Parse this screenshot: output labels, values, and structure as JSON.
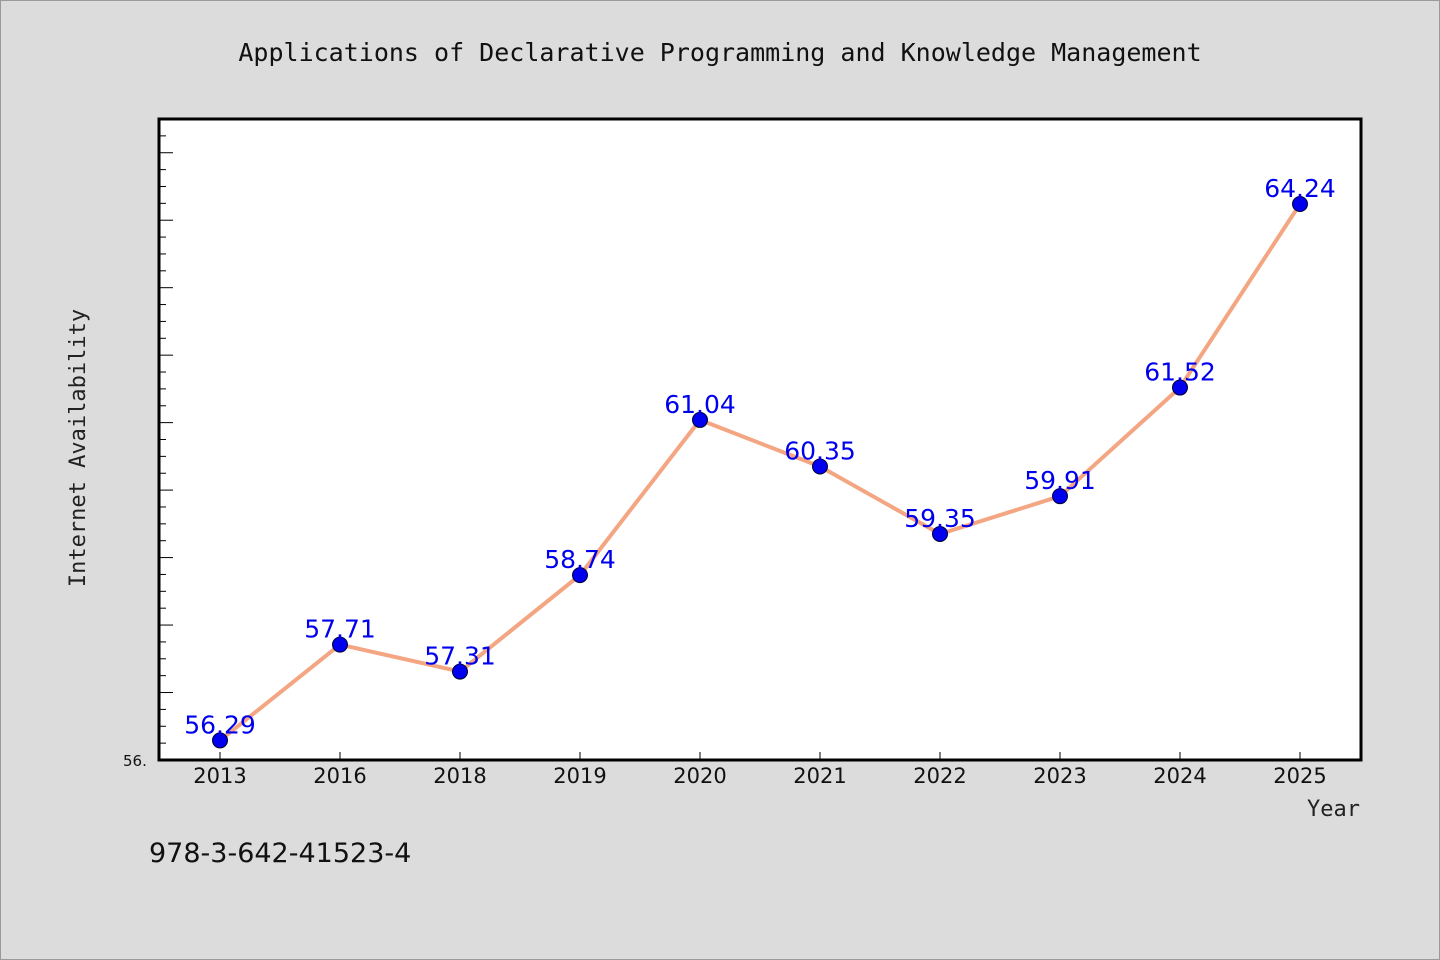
{
  "chart_data": {
    "type": "line",
    "title": "Applications of Declarative Programming and Knowledge Management",
    "xlabel": "Year",
    "ylabel": "Internet Availability",
    "categories": [
      "2013",
      "2016",
      "2018",
      "2019",
      "2020",
      "2021",
      "2022",
      "2023",
      "2024",
      "2025"
    ],
    "series": [
      {
        "values": [
          56.29,
          57.71,
          57.31,
          58.74,
          61.04,
          60.35,
          59.35,
          59.91,
          61.52,
          64.24
        ],
        "labels": [
          "56.29",
          "57.71",
          "57.31",
          "58.74",
          "61.04",
          "60.35",
          "59.35",
          "59.91",
          "61.52",
          "64.24"
        ]
      }
    ],
    "ylim": [
      56.0,
      65.5
    ],
    "y_min_tick_label": "56.",
    "grid": false,
    "legend": "none",
    "colors": {
      "line": "#f4a582",
      "marker": "#0000ee",
      "data_label": "#0000ee",
      "background": "#dcdcdc",
      "plot_area": "#ffffff"
    }
  },
  "footer": {
    "isbn": "978-3-642-41523-4"
  }
}
